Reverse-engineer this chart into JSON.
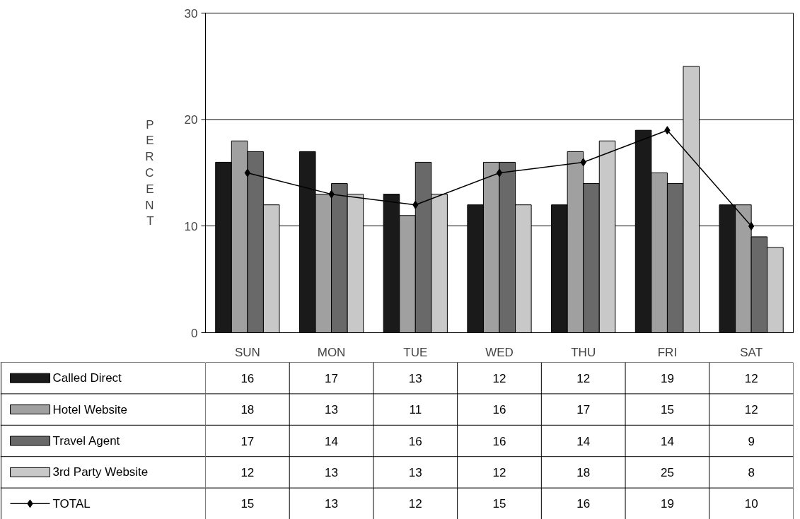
{
  "chart_data": {
    "type": "bar",
    "ylabel": "PERCENT",
    "categories": [
      "SUN",
      "MON",
      "TUE",
      "WED",
      "THU",
      "FRI",
      "SAT"
    ],
    "series": [
      {
        "name": "Called Direct",
        "color": "#1a1a1a",
        "values": [
          16,
          17,
          13,
          12,
          12,
          19,
          12
        ]
      },
      {
        "name": "Hotel Website",
        "color": "#a0a0a0",
        "values": [
          18,
          13,
          11,
          16,
          17,
          15,
          12
        ]
      },
      {
        "name": "Travel Agent",
        "color": "#696969",
        "values": [
          17,
          14,
          16,
          16,
          14,
          14,
          9
        ]
      },
      {
        "name": "3rd Party Website",
        "color": "#c8c8c8",
        "values": [
          12,
          13,
          13,
          12,
          18,
          25,
          8
        ]
      },
      {
        "name": "TOTAL",
        "type": "line",
        "color": "#000000",
        "marker": "diamond",
        "line_style": "solid",
        "values": [
          15,
          13,
          12,
          15,
          16,
          19,
          10
        ]
      }
    ],
    "ylim": [
      0,
      30
    ],
    "yticks": [
      0,
      10,
      20,
      30
    ],
    "grid": "y",
    "legend": "bottom",
    "data_labels": true
  }
}
